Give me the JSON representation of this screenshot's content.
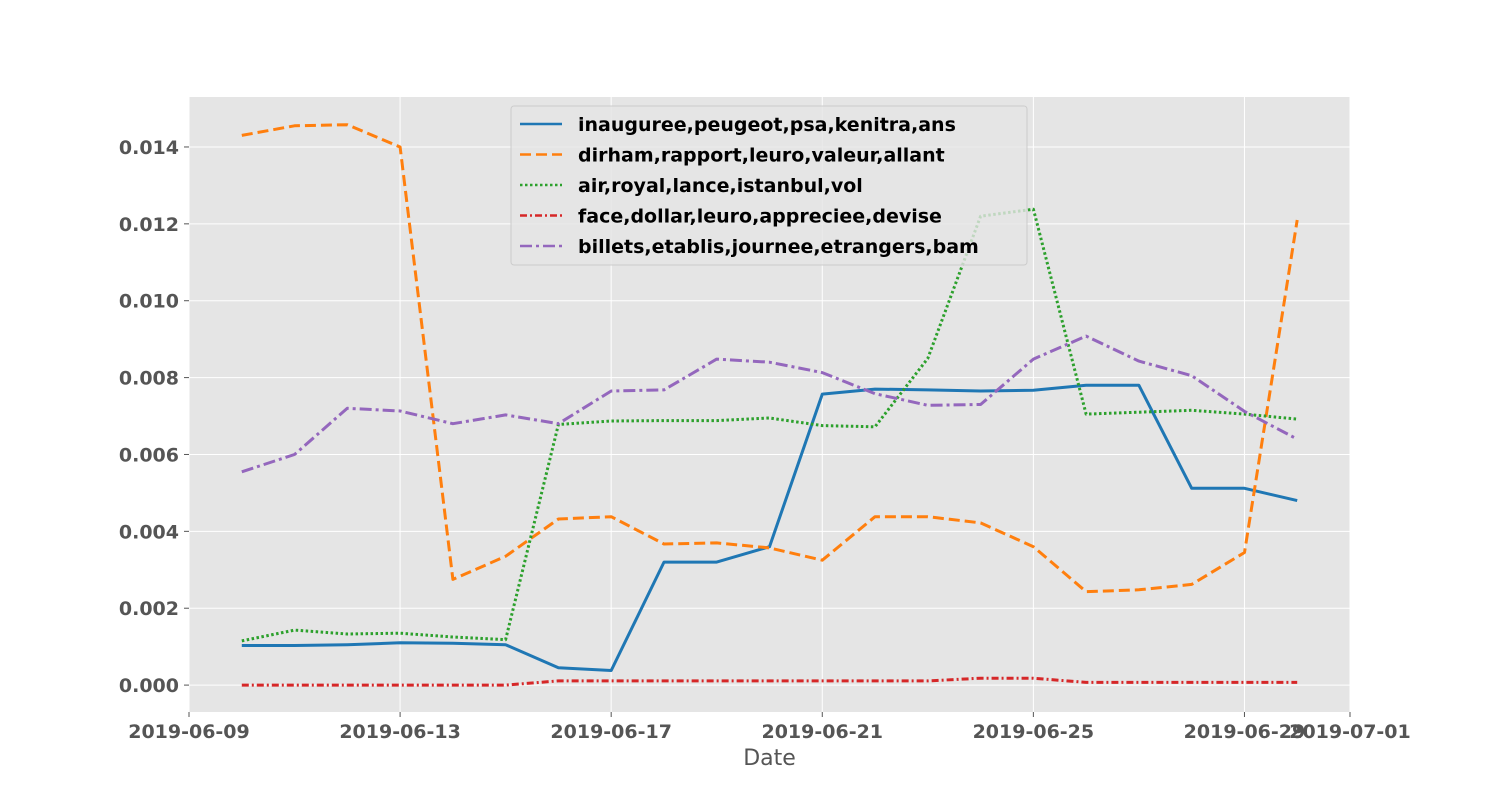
{
  "chart_data": {
    "type": "line",
    "title": "",
    "xlabel": "Date",
    "ylabel": "",
    "x_range": [
      "2019-06-09",
      "2019-07-01"
    ],
    "ylim": [
      -0.0007,
      0.0153
    ],
    "grid": true,
    "legend_position": "top-center",
    "x_ticks": [
      "2019-06-09",
      "2019-06-13",
      "2019-06-17",
      "2019-06-21",
      "2019-06-25",
      "2019-06-29",
      "2019-07-01"
    ],
    "x_tick_labels": [
      "2019-06-09",
      "2019-06-13",
      "2019-06-17",
      "2019-06-21",
      "2019-06-25",
      "2019-06-29",
      "2019-07-01"
    ],
    "y_ticks": [
      0.0,
      0.002,
      0.004,
      0.006,
      0.008,
      0.01,
      0.012,
      0.014
    ],
    "y_tick_labels": [
      "0.000",
      "0.002",
      "0.004",
      "0.006",
      "0.008",
      "0.010",
      "0.012",
      "0.014"
    ],
    "x": [
      "2019-06-10",
      "2019-06-11",
      "2019-06-12",
      "2019-06-13",
      "2019-06-14",
      "2019-06-15",
      "2019-06-16",
      "2019-06-17",
      "2019-06-18",
      "2019-06-19",
      "2019-06-20",
      "2019-06-21",
      "2019-06-22",
      "2019-06-23",
      "2019-06-24",
      "2019-06-25",
      "2019-06-26",
      "2019-06-27",
      "2019-06-28",
      "2019-06-29",
      "2019-06-30"
    ],
    "series": [
      {
        "name": "inauguree,peugeot,psa,kenitra,ans",
        "color": "#1f77b4",
        "dash": "solid",
        "values": [
          0.00103,
          0.00103,
          0.00105,
          0.0011,
          0.00109,
          0.00105,
          0.00045,
          0.00038,
          0.0032,
          0.0032,
          0.0036,
          0.00757,
          0.0077,
          0.00768,
          0.00765,
          0.00767,
          0.0078,
          0.0078,
          0.00512,
          0.00512,
          0.0048
        ]
      },
      {
        "name": "dirham,rapport,leuro,valeur,allant",
        "color": "#ff7f0e",
        "dash": "dashed",
        "values": [
          0.0143,
          0.01455,
          0.01458,
          0.014,
          0.00275,
          0.00335,
          0.00432,
          0.00438,
          0.00367,
          0.0037,
          0.00357,
          0.00325,
          0.00438,
          0.00438,
          0.00422,
          0.0036,
          0.00243,
          0.00248,
          0.00262,
          0.00345,
          0.0121
        ]
      },
      {
        "name": "air,royal,lance,istanbul,vol",
        "color": "#2ca02c",
        "dash": "dotted",
        "values": [
          0.00115,
          0.00143,
          0.00133,
          0.00135,
          0.00125,
          0.00118,
          0.00678,
          0.00687,
          0.00688,
          0.00688,
          0.00695,
          0.00675,
          0.00672,
          0.0085,
          0.0122,
          0.01238,
          0.00705,
          0.0071,
          0.00715,
          0.00705,
          0.00692
        ]
      },
      {
        "name": "face,dollar,leuro,appreciee,devise",
        "color": "#d62728",
        "dash": "dashdot-fine",
        "values": [
          0.0,
          0.0,
          0.0,
          0.0,
          0.0,
          0.0,
          0.00011,
          0.00011,
          0.00011,
          0.00011,
          0.00011,
          0.00011,
          0.00011,
          0.00011,
          0.00018,
          0.00018,
          7e-05,
          7e-05,
          7e-05,
          7e-05,
          7e-05
        ]
      },
      {
        "name": "billets,etablis,journee,etrangers,bam",
        "color": "#9467bd",
        "dash": "dashdot",
        "values": [
          0.00555,
          0.006,
          0.0072,
          0.00713,
          0.0068,
          0.00703,
          0.0068,
          0.00765,
          0.00768,
          0.00848,
          0.0084,
          0.00813,
          0.00758,
          0.00728,
          0.0073,
          0.00848,
          0.00908,
          0.00843,
          0.00805,
          0.00712,
          0.0064
        ]
      }
    ]
  }
}
